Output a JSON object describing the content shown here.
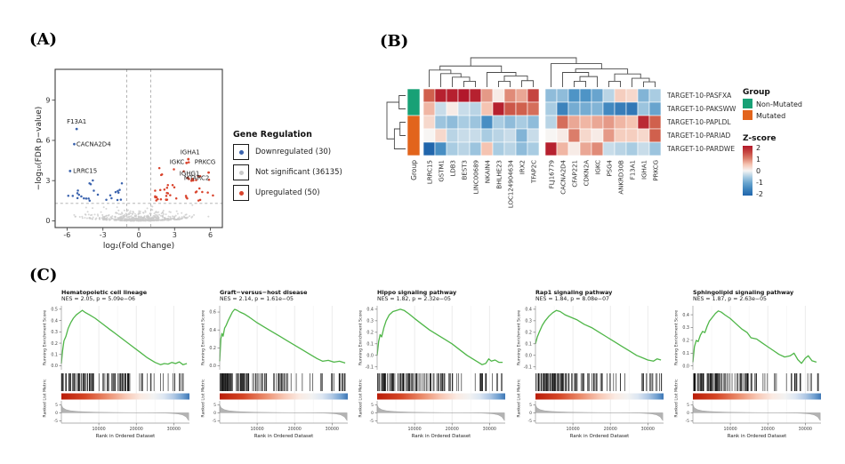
{
  "panels": {
    "a": "(A)",
    "b": "(B)",
    "c": "(C)"
  },
  "colors": {
    "down_blue": "#3b63ae",
    "not_sig_gray": "#c9c9c9",
    "up_red": "#d9432c",
    "gsea_green": "#4fb648",
    "group_green": "#18a176",
    "group_orange": "#e2641c",
    "heat_pos": "#b2182b",
    "heat_neg": "#2166ac"
  },
  "chart_data": [
    {
      "id": "volcano",
      "type": "scatter",
      "xlabel": "log₂(Fold Change)",
      "ylabel": "−log₁₀(FDR p−value)",
      "xlim": [
        -7,
        7
      ],
      "ylim": [
        -0.5,
        11.3
      ],
      "xticks": [
        -6,
        -3,
        0,
        3,
        6
      ],
      "yticks": [
        0,
        3,
        6,
        9
      ],
      "thresholds": {
        "x": [
          -1,
          1
        ],
        "y": 1.3
      },
      "counts": {
        "downregulated": 30,
        "not_significant": 36135,
        "upregulated": 50
      },
      "legend": {
        "title": "Gene Regulation",
        "items": [
          {
            "label": "Downregulated (30)",
            "color": "#3b63ae"
          },
          {
            "label": "Not significant (36135)",
            "color": "#c9c9c9"
          },
          {
            "label": "Upregulated (50)",
            "color": "#d9432c"
          }
        ]
      },
      "labeled_points": [
        {
          "gene": "F13A1",
          "x": -5.2,
          "y": 6.85,
          "dir": "down",
          "lx": -5.2,
          "ly": 7.4,
          "anchor": "middle"
        },
        {
          "gene": "CACNA2D4",
          "x": -5.4,
          "y": 5.72,
          "dir": "down",
          "lx": -5.22,
          "ly": 5.72,
          "anchor": "start"
        },
        {
          "gene": "LRRC15",
          "x": -5.75,
          "y": 3.72,
          "dir": "down",
          "lx": -5.5,
          "ly": 3.72,
          "anchor": "start"
        },
        {
          "gene": "IGHA1",
          "x": 4.15,
          "y": 4.6,
          "dir": "up",
          "lx": 4.3,
          "ly": 5.12,
          "anchor": "middle"
        },
        {
          "gene": "IGKC",
          "x": 4.0,
          "y": 4.32,
          "dir": "up",
          "lx": 3.82,
          "ly": 4.38,
          "anchor": "end"
        },
        {
          "gene": "PRKCG",
          "x": 5.85,
          "y": 3.6,
          "dir": "up",
          "lx": 5.55,
          "ly": 4.38,
          "anchor": "middle"
        },
        {
          "gene": "IGHG1",
          "x": 4.1,
          "y": 3.2,
          "dir": "up",
          "lx": 4.25,
          "ly": 3.52,
          "anchor": "middle"
        },
        {
          "gene": "MTARC2",
          "x": 4.55,
          "y": 3.02,
          "dir": "up",
          "lx": 4.85,
          "ly": 3.18,
          "anchor": "middle"
        }
      ]
    },
    {
      "id": "heatmap",
      "type": "heatmap",
      "rows": [
        "TARGET-10-PASFXA",
        "TARGET-10-PAKSWW",
        "TARGET-10-PAPLDL",
        "TARGET-10-PARIAD",
        "TARGET-10-PARDWE"
      ],
      "cols": [
        "LRRC15",
        "GSTM1",
        "LDB3",
        "BEST3",
        "LINC00689",
        "NKAIN4",
        "BHLHE23",
        "LOC124904634",
        "IRX2",
        "TFAP2C",
        "FLJ16779",
        "CACNA2D4",
        "CFAP221",
        "CDKN2A",
        "IGKC",
        "PSG4",
        "ANKRD30B",
        "F13A1",
        "IGHA1",
        "PRKCG"
      ],
      "group_col_label": "Group",
      "row_groups": [
        "Non-Mutated",
        "Non-Mutated",
        "Mutated",
        "Mutated",
        "Mutated"
      ],
      "values": [
        [
          1.2,
          1.9,
          1.9,
          2.0,
          1.9,
          0.8,
          0.1,
          0.9,
          0.7,
          1.5,
          -0.7,
          -0.7,
          -1.2,
          -1.2,
          -1.0,
          -0.4,
          0.4,
          0.3,
          -0.8,
          -0.5
        ],
        [
          0.6,
          -0.3,
          0.1,
          -0.3,
          -0.4,
          0.5,
          1.9,
          1.3,
          1.2,
          1.1,
          -0.5,
          -1.5,
          -0.9,
          -0.9,
          -0.8,
          -1.4,
          -1.6,
          -1.7,
          -0.6,
          -1.0
        ],
        [
          0.3,
          -0.6,
          -0.7,
          -0.5,
          -0.6,
          -1.3,
          -0.5,
          -0.7,
          -0.5,
          -0.7,
          -0.4,
          1.1,
          0.7,
          0.6,
          0.7,
          0.8,
          0.6,
          0.5,
          1.8,
          1.2
        ],
        [
          0.0,
          0.3,
          -0.4,
          -0.3,
          -0.3,
          -0.5,
          -0.4,
          -0.3,
          -0.8,
          -0.3,
          0.0,
          0.1,
          1.0,
          0.3,
          0.1,
          0.8,
          0.4,
          0.4,
          0.3,
          1.2
        ],
        [
          -2.0,
          -1.3,
          -0.5,
          -0.4,
          -0.6,
          0.5,
          -0.5,
          -0.4,
          -0.7,
          -0.5,
          1.9,
          0.6,
          0.1,
          0.7,
          0.9,
          -0.3,
          -0.4,
          -0.5,
          -0.3,
          -0.6
        ]
      ],
      "legend_group": {
        "title": "Group",
        "items": [
          {
            "label": "Non-Mutated",
            "color": "#18a176"
          },
          {
            "label": "Mutated",
            "color": "#e2641c"
          }
        ]
      },
      "legend_scale": {
        "title": "Z-score",
        "ticks": [
          "2",
          "1",
          "0",
          "-1",
          "-2"
        ]
      },
      "col_tree": {
        "h": 1.0,
        "c": [
          {
            "h": 0.72,
            "c": [
              {
                "h": 0.58,
                "c": [
                  0,
                  {
                    "h": 0.46,
                    "c": [
                      1,
                      {
                        "h": 0.34,
                        "c": [
                          2,
                          {
                            "h": 0.2,
                            "c": [
                              3,
                              4
                            ]
                          }
                        ]
                      }
                    ]
                  }
                ]
              },
              {
                "h": 0.5,
                "c": [
                  5,
                  {
                    "h": 0.38,
                    "c": [
                      {
                        "h": 0.2,
                        "c": [
                          6,
                          7
                        ]
                      },
                      {
                        "h": 0.22,
                        "c": [
                          8,
                          9
                        ]
                      }
                    ]
                  }
                ]
              }
            ]
          },
          {
            "h": 0.8,
            "c": [
              10,
              {
                "h": 0.62,
                "c": [
                  {
                    "h": 0.5,
                    "c": [
                      11,
                      {
                        "h": 0.36,
                        "c": [
                          {
                            "h": 0.2,
                            "c": [
                              12,
                              13
                            ]
                          },
                          14
                        ]
                      }
                    ]
                  },
                  {
                    "h": 0.45,
                    "c": [
                      {
                        "h": 0.2,
                        "c": [
                          15,
                          16
                        ]
                      },
                      {
                        "h": 0.3,
                        "c": [
                          17,
                          {
                            "h": 0.18,
                            "c": [
                              18,
                              19
                            ]
                          }
                        ]
                      }
                    ]
                  }
                ]
              }
            ]
          }
        ]
      },
      "row_tree": {
        "h": 1.0,
        "c": [
          {
            "h": 0.35,
            "c": [
              0,
              1
            ]
          },
          {
            "h": 0.6,
            "c": [
              {
                "h": 0.3,
                "c": [
                  2,
                  3
                ]
              },
              4
            ]
          }
        ]
      }
    },
    {
      "id": "gsea-1",
      "type": "line",
      "title": "Hematopoietic cell lineage",
      "stats": "NES = 2.05, p = 5.09e−06",
      "yticks": [
        "0.0",
        "0.1",
        "0.2",
        "0.3",
        "0.4",
        "0.5"
      ],
      "ylim": [
        -0.035,
        0.53
      ],
      "rug_seed": 7,
      "curve": [
        [
          0,
          0.02
        ],
        [
          300,
          0.13
        ],
        [
          700,
          0.22
        ],
        [
          1200,
          0.26
        ],
        [
          1800,
          0.33
        ],
        [
          2500,
          0.38
        ],
        [
          3200,
          0.42
        ],
        [
          4000,
          0.45
        ],
        [
          4800,
          0.47
        ],
        [
          5600,
          0.49
        ],
        [
          6400,
          0.47
        ],
        [
          7500,
          0.45
        ],
        [
          9000,
          0.42
        ],
        [
          11000,
          0.37
        ],
        [
          13000,
          0.32
        ],
        [
          15000,
          0.27
        ],
        [
          17000,
          0.22
        ],
        [
          19000,
          0.17
        ],
        [
          21000,
          0.12
        ],
        [
          23000,
          0.07
        ],
        [
          25000,
          0.03
        ],
        [
          26500,
          0.01
        ],
        [
          27500,
          0.02
        ],
        [
          28500,
          0.015
        ],
        [
          29500,
          0.03
        ],
        [
          30500,
          0.02
        ],
        [
          31500,
          0.035
        ],
        [
          32500,
          0.01
        ],
        [
          33500,
          0.02
        ]
      ]
    },
    {
      "id": "gsea-2",
      "type": "line",
      "title": "Graft−versus−host disease",
      "stats": "NES = 2.14, p = 1.61e−05",
      "yticks": [
        "0.0",
        "0.2",
        "0.4",
        "0.6"
      ],
      "ylim": [
        -0.045,
        0.67
      ],
      "rug_seed": 13,
      "curve": [
        [
          0,
          0.05
        ],
        [
          300,
          0.3
        ],
        [
          600,
          0.36
        ],
        [
          900,
          0.33
        ],
        [
          1300,
          0.42
        ],
        [
          1700,
          0.45
        ],
        [
          2200,
          0.5
        ],
        [
          2800,
          0.55
        ],
        [
          3400,
          0.6
        ],
        [
          4000,
          0.63
        ],
        [
          4600,
          0.62
        ],
        [
          5400,
          0.6
        ],
        [
          6500,
          0.58
        ],
        [
          8000,
          0.54
        ],
        [
          10000,
          0.48
        ],
        [
          12000,
          0.43
        ],
        [
          14000,
          0.38
        ],
        [
          16000,
          0.33
        ],
        [
          18000,
          0.28
        ],
        [
          20000,
          0.23
        ],
        [
          22000,
          0.18
        ],
        [
          24000,
          0.13
        ],
        [
          26000,
          0.08
        ],
        [
          27500,
          0.05
        ],
        [
          29000,
          0.06
        ],
        [
          30500,
          0.04
        ],
        [
          32000,
          0.05
        ],
        [
          33500,
          0.03
        ]
      ]
    },
    {
      "id": "gsea-3",
      "type": "line",
      "title": "Hippo signaling pathway",
      "stats": "NES = 1.82, p = 2.32e−05",
      "yticks": [
        "-0.1",
        "0.0",
        "0.1",
        "0.2",
        "0.3",
        "0.4"
      ],
      "ylim": [
        -0.125,
        0.43
      ],
      "rug_seed": 23,
      "curve": [
        [
          0,
          0.0
        ],
        [
          400,
          0.12
        ],
        [
          800,
          0.18
        ],
        [
          1200,
          0.16
        ],
        [
          1800,
          0.24
        ],
        [
          2400,
          0.3
        ],
        [
          3200,
          0.35
        ],
        [
          4200,
          0.38
        ],
        [
          5200,
          0.39
        ],
        [
          6200,
          0.4
        ],
        [
          7200,
          0.39
        ],
        [
          8500,
          0.36
        ],
        [
          10000,
          0.32
        ],
        [
          12000,
          0.27
        ],
        [
          14000,
          0.22
        ],
        [
          16000,
          0.18
        ],
        [
          18000,
          0.14
        ],
        [
          20000,
          0.1
        ],
        [
          22000,
          0.05
        ],
        [
          24000,
          0.0
        ],
        [
          25500,
          -0.03
        ],
        [
          27000,
          -0.06
        ],
        [
          28000,
          -0.08
        ],
        [
          29000,
          -0.07
        ],
        [
          29800,
          -0.03
        ],
        [
          30500,
          -0.05
        ],
        [
          31500,
          -0.04
        ],
        [
          32500,
          -0.06
        ],
        [
          33500,
          -0.06
        ]
      ]
    },
    {
      "id": "gsea-4",
      "type": "line",
      "title": "Rap1 signaling pathway",
      "stats": "NES = 1.84, p = 8.08e−07",
      "yticks": [
        "-0.1",
        "0.0",
        "0.1",
        "0.2",
        "0.3",
        "0.4"
      ],
      "ylim": [
        -0.125,
        0.43
      ],
      "rug_seed": 31,
      "curve": [
        [
          0,
          0.1
        ],
        [
          500,
          0.16
        ],
        [
          1000,
          0.2
        ],
        [
          1800,
          0.26
        ],
        [
          2600,
          0.3
        ],
        [
          3600,
          0.34
        ],
        [
          4600,
          0.37
        ],
        [
          5600,
          0.39
        ],
        [
          6600,
          0.38
        ],
        [
          8000,
          0.35
        ],
        [
          9500,
          0.33
        ],
        [
          11000,
          0.31
        ],
        [
          13000,
          0.27
        ],
        [
          15000,
          0.24
        ],
        [
          17000,
          0.2
        ],
        [
          19000,
          0.16
        ],
        [
          21000,
          0.12
        ],
        [
          23000,
          0.08
        ],
        [
          25000,
          0.04
        ],
        [
          27000,
          0.0
        ],
        [
          28500,
          -0.02
        ],
        [
          30000,
          -0.04
        ],
        [
          31500,
          -0.05
        ],
        [
          32500,
          -0.03
        ],
        [
          33500,
          -0.04
        ]
      ]
    },
    {
      "id": "gsea-5",
      "type": "line",
      "title": "Sphingolipid signaling pathway",
      "stats": "NES = 1.87, p = 2.63e−05",
      "yticks": [
        "0.0",
        "0.1",
        "0.2",
        "0.3",
        "0.4"
      ],
      "ylim": [
        -0.03,
        0.47
      ],
      "rug_seed": 47,
      "curve": [
        [
          0,
          0.03
        ],
        [
          400,
          0.15
        ],
        [
          900,
          0.2
        ],
        [
          1400,
          0.19
        ],
        [
          2000,
          0.24
        ],
        [
          2600,
          0.27
        ],
        [
          3200,
          0.26
        ],
        [
          3800,
          0.31
        ],
        [
          4400,
          0.35
        ],
        [
          5200,
          0.38
        ],
        [
          6000,
          0.41
        ],
        [
          6800,
          0.43
        ],
        [
          7600,
          0.42
        ],
        [
          8500,
          0.4
        ],
        [
          10000,
          0.37
        ],
        [
          11500,
          0.33
        ],
        [
          13000,
          0.29
        ],
        [
          14500,
          0.26
        ],
        [
          15500,
          0.22
        ],
        [
          17000,
          0.21
        ],
        [
          18500,
          0.18
        ],
        [
          20000,
          0.15
        ],
        [
          21500,
          0.12
        ],
        [
          23000,
          0.09
        ],
        [
          24500,
          0.07
        ],
        [
          26000,
          0.08
        ],
        [
          27000,
          0.1
        ],
        [
          28000,
          0.05
        ],
        [
          29000,
          0.02
        ],
        [
          30000,
          0.06
        ],
        [
          30800,
          0.08
        ],
        [
          31800,
          0.04
        ],
        [
          33000,
          0.03
        ]
      ]
    }
  ],
  "gsea_common": {
    "xlabel": "Rank in Ordered Dataset",
    "ylabel_top": "Running Enrichment Score",
    "ylabel_bottom": "Ranked List Metric",
    "xticks": [
      "10000",
      "20000",
      "30000"
    ],
    "xlim": [
      0,
      34200
    ],
    "metric_yticks": [
      "5",
      "0",
      "-5"
    ],
    "metric_curve": [
      [
        0,
        5
      ],
      [
        400,
        3.2
      ],
      [
        1200,
        2
      ],
      [
        2500,
        1.3
      ],
      [
        4500,
        0.85
      ],
      [
        7000,
        0.55
      ],
      [
        10000,
        0.35
      ],
      [
        14000,
        0.2
      ],
      [
        18000,
        0.1
      ],
      [
        22000,
        0.02
      ],
      [
        25000,
        -0.06
      ],
      [
        27500,
        -0.18
      ],
      [
        29500,
        -0.38
      ],
      [
        31000,
        -0.7
      ],
      [
        32300,
        -1.3
      ],
      [
        33300,
        -2.6
      ],
      [
        34000,
        -5
      ]
    ]
  }
}
